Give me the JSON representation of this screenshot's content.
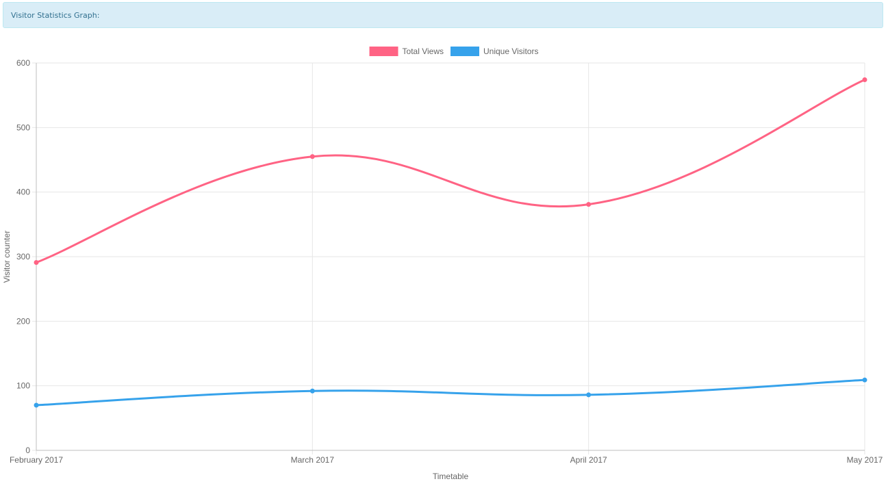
{
  "header": {
    "title": "Visitor Statistics Graph:"
  },
  "chart_data": {
    "type": "line",
    "categories": [
      "February 2017",
      "March 2017",
      "April 2017",
      "May 2017"
    ],
    "series": [
      {
        "name": "Total Views",
        "values": [
          291,
          455,
          381,
          574
        ],
        "color": "#ff6384"
      },
      {
        "name": "Unique Visitors",
        "values": [
          70,
          92,
          86,
          109
        ],
        "color": "#36a2eb"
      }
    ],
    "xlabel": "Timetable",
    "ylabel": "Visitor counter",
    "ylim": [
      0,
      600
    ],
    "yticks": [
      0,
      100,
      200,
      300,
      400,
      500,
      600
    ],
    "grid": true,
    "legend": "top-center"
  }
}
